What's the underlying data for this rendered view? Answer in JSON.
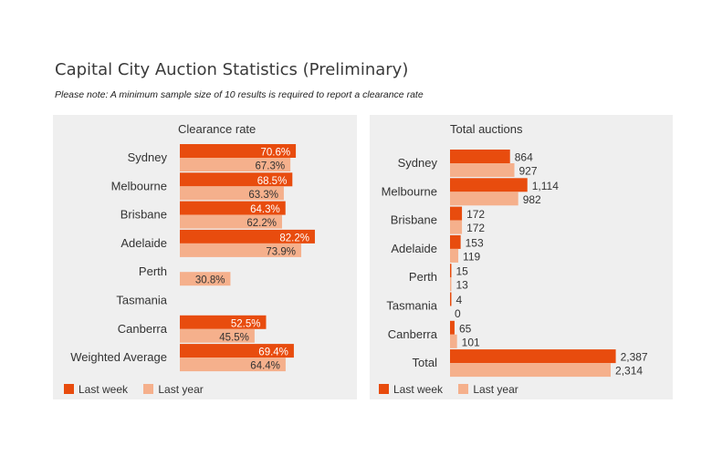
{
  "header": {
    "title": "Capital City Auction Statistics (Preliminary)",
    "note": "Please note: A minimum sample size of 10 results is required to report a clearance rate"
  },
  "colors": {
    "last_week": "#e84c0e",
    "last_year": "#f5b08c"
  },
  "legend": {
    "last_week": "Last week",
    "last_year": "Last year"
  },
  "chart_data": [
    {
      "type": "bar",
      "orientation": "horizontal",
      "title": "Clearance rate",
      "categories": [
        "Sydney",
        "Melbourne",
        "Brisbane",
        "Adelaide",
        "Perth",
        "Tasmania",
        "Canberra",
        "Weighted Average"
      ],
      "series": [
        {
          "name": "Last week",
          "values": [
            70.6,
            68.5,
            64.3,
            82.2,
            null,
            null,
            52.5,
            69.4
          ],
          "labels": [
            "70.6%",
            "68.5%",
            "64.3%",
            "82.2%",
            "",
            "",
            "52.5%",
            "69.4%"
          ]
        },
        {
          "name": "Last year",
          "values": [
            67.3,
            63.3,
            62.2,
            73.9,
            30.8,
            null,
            45.5,
            64.4
          ],
          "labels": [
            "67.3%",
            "63.3%",
            "62.2%",
            "73.9%",
            "30.8%",
            "",
            "45.5%",
            "64.4%"
          ]
        }
      ],
      "unit": "%",
      "xlim": [
        0,
        100
      ],
      "legend_position": "bottom-left"
    },
    {
      "type": "bar",
      "orientation": "horizontal",
      "title": "Total auctions",
      "categories": [
        "Sydney",
        "Melbourne",
        "Brisbane",
        "Adelaide",
        "Perth",
        "Tasmania",
        "Canberra",
        "Total"
      ],
      "series": [
        {
          "name": "Last week",
          "values": [
            864,
            1114,
            172,
            153,
            15,
            4,
            65,
            2387
          ],
          "labels": [
            "864",
            "1,114",
            "172",
            "153",
            "15",
            "4",
            "65",
            "2,387"
          ]
        },
        {
          "name": "Last year",
          "values": [
            927,
            982,
            172,
            119,
            13,
            0,
            101,
            2314
          ],
          "labels": [
            "927",
            "982",
            "172",
            "119",
            "13",
            "0",
            "101",
            "2,314"
          ]
        }
      ],
      "xlim": [
        0,
        3050
      ],
      "legend_position": "bottom-left"
    }
  ]
}
